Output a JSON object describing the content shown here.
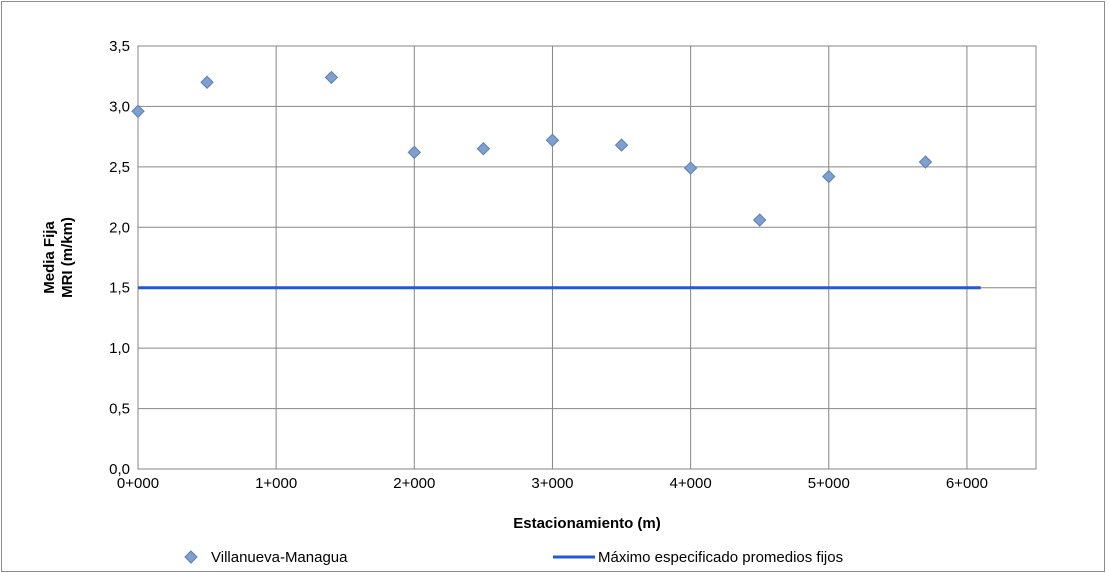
{
  "chart_data": {
    "type": "scatter",
    "xlabel": "Estacionamiento (m)",
    "ylabel_lines": [
      "Media Fija",
      "MRI (m/km)"
    ],
    "xlim": [
      0,
      6500
    ],
    "ylim": [
      0.0,
      3.5
    ],
    "x_ticks": [
      {
        "value": 0,
        "label": "0+000"
      },
      {
        "value": 1000,
        "label": "1+000"
      },
      {
        "value": 2000,
        "label": "2+000"
      },
      {
        "value": 3000,
        "label": "3+000"
      },
      {
        "value": 4000,
        "label": "4+000"
      },
      {
        "value": 5000,
        "label": "5+000"
      },
      {
        "value": 6000,
        "label": "6+000"
      }
    ],
    "y_ticks": [
      {
        "value": 0.0,
        "label": "0,0"
      },
      {
        "value": 0.5,
        "label": "0,5"
      },
      {
        "value": 1.0,
        "label": "1,0"
      },
      {
        "value": 1.5,
        "label": "1,5"
      },
      {
        "value": 2.0,
        "label": "2,0"
      },
      {
        "value": 2.5,
        "label": "2,5"
      },
      {
        "value": 3.0,
        "label": "3,0"
      },
      {
        "value": 3.5,
        "label": "3,5"
      }
    ],
    "grid": true,
    "legend_position": "bottom",
    "series": [
      {
        "name": "Villanueva-Managua",
        "type": "scatter",
        "marker": "diamond",
        "color": "#7f9fce",
        "edge_color": "#5a7fb4",
        "x": [
          0,
          500,
          1400,
          2000,
          2500,
          3000,
          3500,
          4000,
          4500,
          5000,
          5700
        ],
        "y": [
          2.96,
          3.2,
          3.24,
          2.62,
          2.65,
          2.72,
          2.68,
          2.49,
          2.06,
          2.42,
          2.54
        ]
      },
      {
        "name": "Máximo especificado promedios fijos",
        "type": "line",
        "color": "#1f5bd6",
        "x": [
          0,
          6100
        ],
        "y": [
          1.5,
          1.5
        ]
      }
    ]
  }
}
